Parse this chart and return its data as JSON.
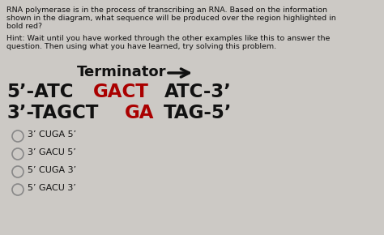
{
  "background_color": "#ccc9c5",
  "header_text_line1": "RNA polymerase is in the process of transcribing an RNA. Based on the information",
  "header_text_line2": "shown in the diagram, what sequence will be produced over the region highlighted in",
  "header_text_line3": "bold red?",
  "hint_text_line1": "Hint: Wait until you have worked through the other examples like this to answer the",
  "hint_text_line2": "question. Then using what you have learned, try solving this problem.",
  "terminator_label": "Terminator",
  "seq1_prefix": "5’-ATC",
  "seq1_bold_red": "GACT",
  "seq1_suffix": "ATC-3’",
  "seq2_prefix": "3’-TAGCT",
  "seq2_bold_red": "GA",
  "seq2_suffix": "TAG-5’",
  "options": [
    "3’ CUGA 5’",
    "3’ GACU 5’",
    "5’ CUGA 3’",
    "5’ GACU 3’"
  ],
  "header_fontsize": 6.8,
  "hint_fontsize": 6.8,
  "terminator_fontsize": 13,
  "seq_fontsize": 16.5,
  "option_fontsize": 8,
  "black_color": "#111111",
  "red_color": "#aa0000",
  "gray_circle_color": "#888888"
}
